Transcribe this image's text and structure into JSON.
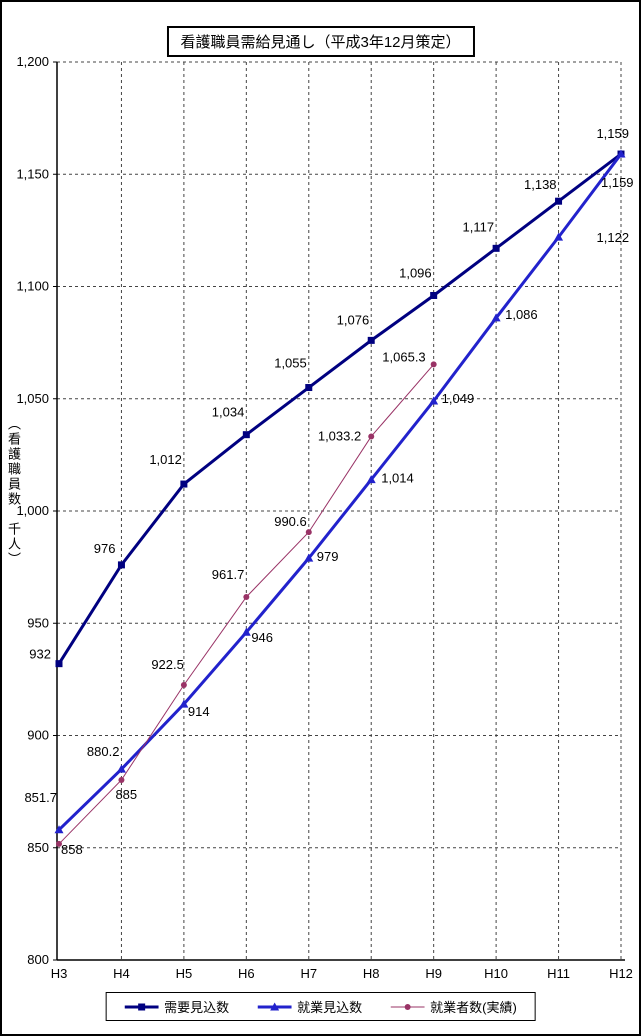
{
  "title": "看護職員需給見通し（平成3年12月策定）",
  "y_axis_title": "（看護職員数　千人）",
  "chart_data": {
    "type": "line",
    "title": "看護職員需給見通し（平成3年12月策定）",
    "xlabel": "",
    "ylabel": "（看護職員数　千人）",
    "categories": [
      "H3",
      "H4",
      "H5",
      "H6",
      "H7",
      "H8",
      "H9",
      "H10",
      "H11",
      "H12"
    ],
    "ylim": [
      800,
      1200
    ],
    "y_ticks": [
      800,
      850,
      900,
      950,
      1000,
      1050,
      1100,
      1150,
      1200
    ],
    "y_tick_labels": [
      "800",
      "850",
      "900",
      "950",
      "1,000",
      "1,050",
      "1,100",
      "1,150",
      "1,200"
    ],
    "grid": "dashed-both",
    "legend_position": "bottom",
    "series": [
      {
        "name": "需要見込数",
        "marker": "square",
        "color": "#000080",
        "line_width": 3,
        "values": [
          932,
          976,
          1012,
          1034,
          1055,
          1076,
          1096,
          1117,
          1138,
          1159
        ],
        "labels": [
          "932",
          "976",
          "1,012",
          "1,034",
          "1,055",
          "1,076",
          "1,096",
          "1,117",
          "1,138",
          "1,159"
        ],
        "label_offsets": [
          [
            -8,
            -5,
            "e"
          ],
          [
            -6,
            -12,
            "e"
          ],
          [
            -2,
            -20,
            "e"
          ],
          [
            -2,
            -18,
            "e"
          ],
          [
            -2,
            -20,
            "e"
          ],
          [
            -2,
            -16,
            "e"
          ],
          [
            -2,
            -18,
            "e"
          ],
          [
            -2,
            -17,
            "e"
          ],
          [
            -2,
            -12,
            "e"
          ],
          [
            8,
            -16,
            "e"
          ]
        ]
      },
      {
        "name": "就業見込数",
        "marker": "triangle",
        "color": "#2222CC",
        "line_width": 3,
        "values": [
          858,
          885,
          914,
          946,
          979,
          1014,
          1049,
          1086,
          1122,
          1159
        ],
        "labels": [
          "858",
          "885",
          "914",
          "946",
          "979",
          "1,014",
          "1,049",
          "1,086",
          "1,122",
          "1,159"
        ],
        "label_offsets": [
          [
            2,
            24,
            "s"
          ],
          [
            -6,
            30,
            "s"
          ],
          [
            4,
            12,
            "s"
          ],
          [
            5,
            10,
            "s"
          ],
          [
            8,
            3,
            "s"
          ],
          [
            10,
            3,
            "s"
          ],
          [
            8,
            2,
            "s"
          ],
          [
            9,
            1,
            "s"
          ],
          [
            38,
            5,
            "s"
          ],
          [
            -20,
            33,
            "s"
          ]
        ]
      },
      {
        "name": "就業者数(実績)",
        "marker": "circle",
        "color": "#993366",
        "line_width": 1,
        "values": [
          851.7,
          880.2,
          922.5,
          961.7,
          990.6,
          1033.2,
          1065.3
        ],
        "labels": [
          "851.7",
          "880.2",
          "922.5",
          "961.7",
          "990.6",
          "1,033.2",
          "1,065.3"
        ],
        "label_offsets": [
          [
            -2,
            -42,
            "e"
          ],
          [
            -2,
            -24,
            "e"
          ],
          [
            0,
            -16,
            "e"
          ],
          [
            -2,
            -18,
            "e"
          ],
          [
            -2,
            -6,
            "e"
          ],
          [
            -10,
            4,
            "e"
          ],
          [
            -8,
            -3,
            "e"
          ]
        ]
      }
    ]
  }
}
